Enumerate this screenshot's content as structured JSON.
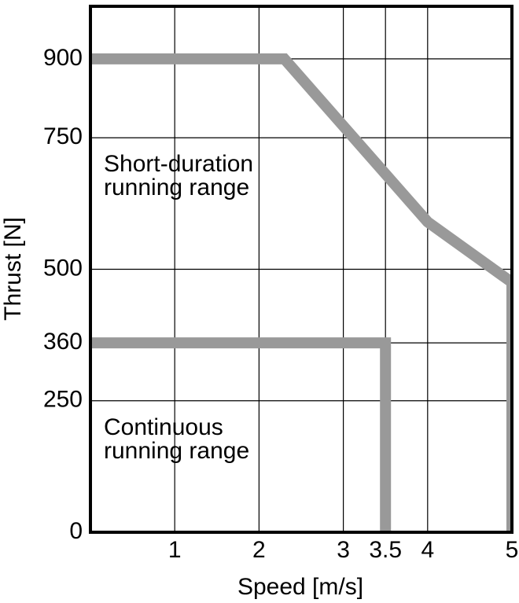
{
  "chart_data": {
    "type": "line",
    "x_label": "Speed [m/s]",
    "y_label": "Thrust [N]",
    "xlim": [
      0,
      5
    ],
    "ylim": [
      0,
      1000
    ],
    "xticks": [
      1,
      2,
      3,
      3.5,
      4,
      5
    ],
    "yticks": [
      0,
      250,
      360,
      500,
      750,
      900
    ],
    "grid": true,
    "series": [
      {
        "name": "Short-duration running range",
        "color": "#999999",
        "x": [
          0,
          2.3,
          4,
          5,
          5
        ],
        "values": [
          900,
          900,
          590,
          475,
          0
        ]
      },
      {
        "name": "Continuous running range",
        "color": "#999999",
        "x": [
          0,
          3.5,
          3.5
        ],
        "values": [
          360,
          360,
          0
        ]
      }
    ],
    "annotations": [
      {
        "lines": [
          "Short-duration",
          "running range"
        ]
      },
      {
        "lines": [
          "Continuous",
          "running range"
        ]
      }
    ]
  }
}
